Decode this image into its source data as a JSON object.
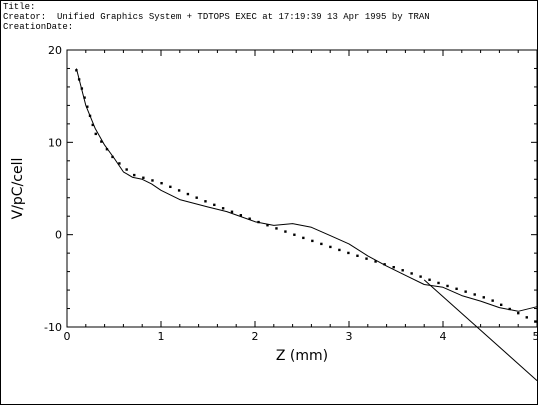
{
  "header": {
    "title_line": "Title:",
    "creator_line": "Creator:  Unified Graphics System + TDTOPS EXEC at 17:19:39 13 Apr 1995 by TRAN",
    "date_line": "CreationDate:"
  },
  "chart_data": {
    "type": "line",
    "title": "",
    "xlabel": "Z (mm)",
    "ylabel": "V/pC/cell",
    "xlim": [
      0,
      5
    ],
    "ylim": [
      -10,
      20
    ],
    "xticks": [
      0,
      1,
      2,
      3,
      4,
      5
    ],
    "yticks": [
      -10,
      0,
      10,
      20
    ],
    "grid": false,
    "series": [
      {
        "style": "solid",
        "x": [
          0.1,
          0.2,
          0.3,
          0.4,
          0.5,
          0.6,
          0.7,
          0.8,
          0.9,
          1.0,
          1.2,
          1.5,
          1.7,
          2.0,
          2.2,
          2.4,
          2.6,
          2.8,
          3.0,
          3.2,
          3.4,
          3.6,
          3.8,
          4.0,
          4.2,
          4.4,
          4.6,
          4.8,
          5.0
        ],
        "y": [
          18.0,
          14.0,
          11.5,
          9.7,
          8.3,
          6.8,
          6.2,
          6.0,
          5.5,
          4.8,
          3.8,
          3.0,
          2.5,
          1.4,
          1.0,
          1.2,
          0.8,
          -0.1,
          -1.0,
          -2.3,
          -3.4,
          -4.4,
          -5.4,
          -5.7,
          -6.6,
          -7.2,
          -7.9,
          -8.3,
          -7.8
        ]
      },
      {
        "style": "dotted",
        "x": [
          0.1,
          0.3,
          0.5,
          0.7,
          1.0,
          1.5,
          2.0,
          2.5,
          3.0,
          3.5,
          4.0,
          4.5,
          5.0
        ],
        "y": [
          17.8,
          11.0,
          8.2,
          6.5,
          5.6,
          3.5,
          1.5,
          -0.3,
          -2.0,
          -3.6,
          -5.4,
          -7.0,
          -9.5
        ]
      },
      {
        "style": "solid",
        "x": [
          3.8,
          5.0
        ],
        "y": [
          -4.9,
          -15.8
        ]
      }
    ]
  }
}
